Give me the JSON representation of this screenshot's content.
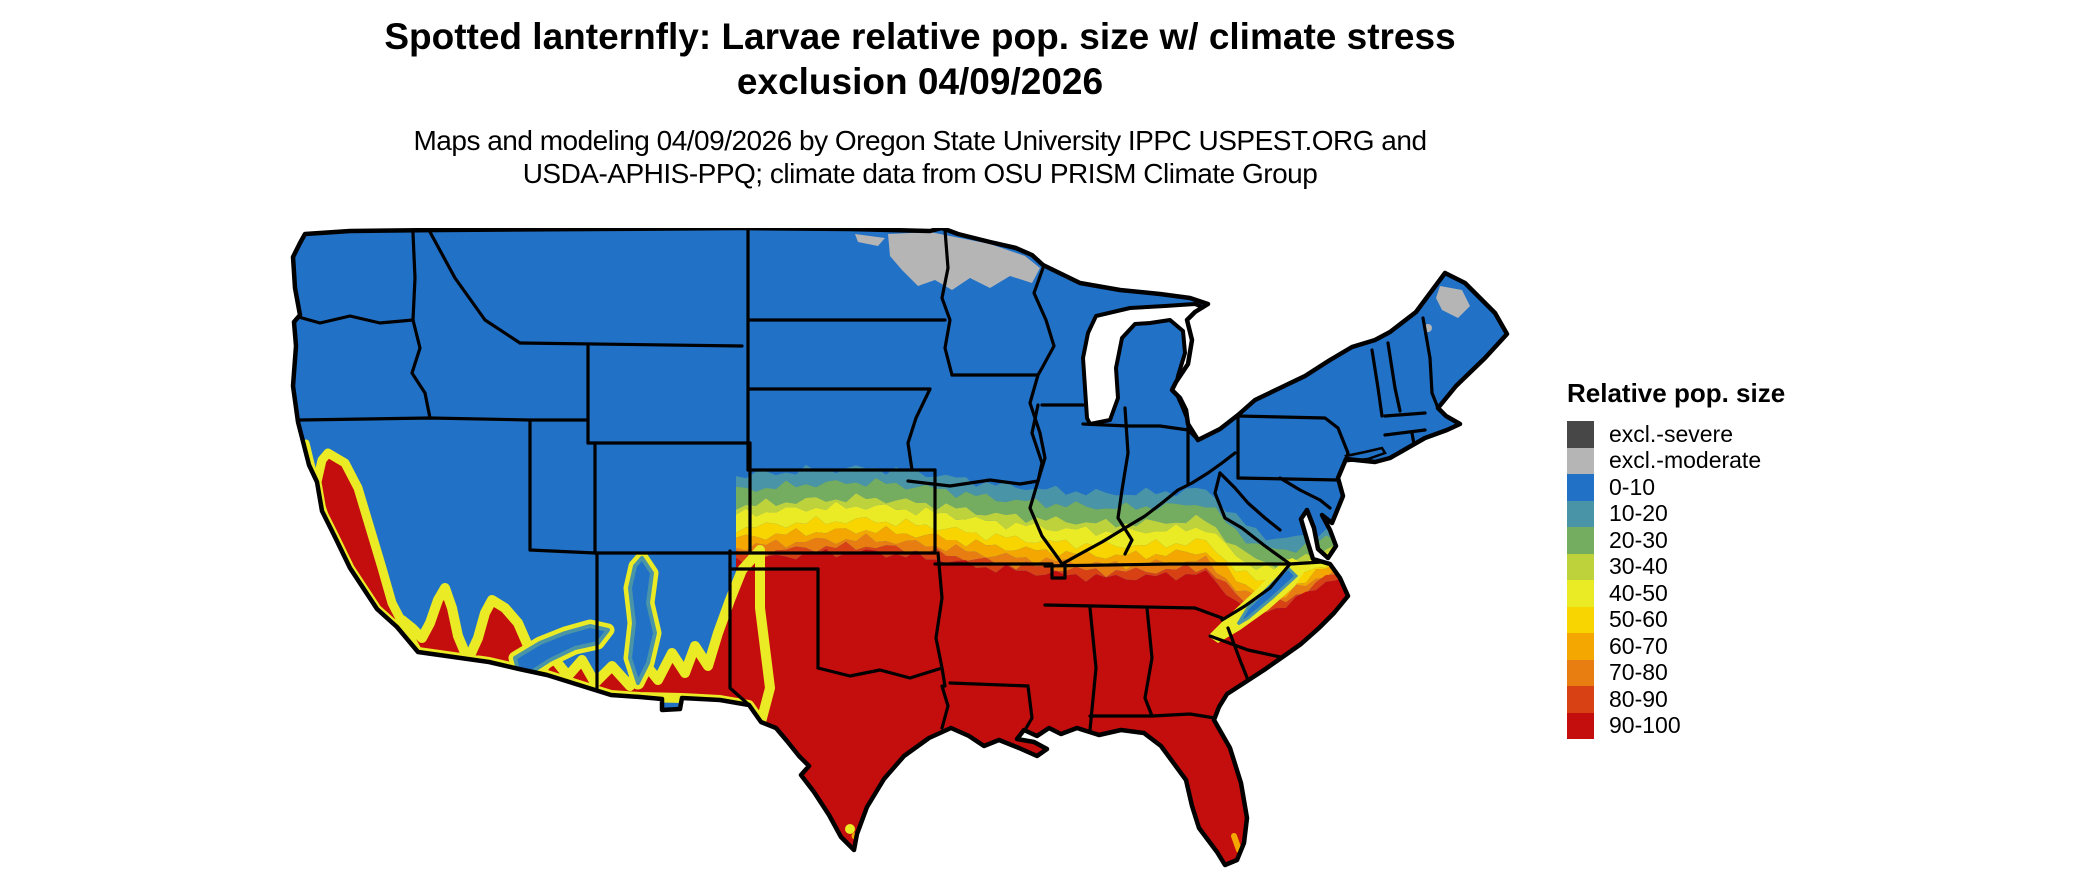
{
  "header": {
    "title_line1": "Spotted lanternfly: Larvae relative pop. size w/ climate stress",
    "title_line2": "exclusion 04/09/2026",
    "subtitle_line1": "Maps and modeling 04/09/2026 by Oregon State University IPPC USPEST.ORG and",
    "subtitle_line2": "USDA-APHIS-PPQ; climate data from OSU PRISM Climate Group"
  },
  "legend": {
    "title": "Relative pop. size",
    "items": [
      {
        "label": "excl.-severe",
        "color_key": "excl_severe"
      },
      {
        "label": "excl.-moderate",
        "color_key": "excl_moderate"
      },
      {
        "label": "0-10",
        "color_key": "c0_10"
      },
      {
        "label": "10-20",
        "color_key": "c10_20"
      },
      {
        "label": "20-30",
        "color_key": "c20_30"
      },
      {
        "label": "30-40",
        "color_key": "c30_40"
      },
      {
        "label": "40-50",
        "color_key": "c40_50"
      },
      {
        "label": "50-60",
        "color_key": "c50_60"
      },
      {
        "label": "60-70",
        "color_key": "c60_70"
      },
      {
        "label": "70-80",
        "color_key": "c70_80"
      },
      {
        "label": "80-90",
        "color_key": "c80_90"
      },
      {
        "label": "90-100",
        "color_key": "c90_100"
      }
    ]
  },
  "palette": {
    "excl_severe": "#474747",
    "excl_moderate": "#b5b5b5",
    "c0_10": "#2171c7",
    "c10_20": "#4a94a8",
    "c20_30": "#74ad60",
    "c30_40": "#bdd23b",
    "c40_50": "#eaea25",
    "c50_60": "#f8d500",
    "c60_70": "#f3a700",
    "c70_80": "#e87e12",
    "c80_90": "#d74114",
    "c90_100": "#c40d0d",
    "border": "#000000",
    "water": "#ffffff"
  },
  "map": {
    "kind": "choropleth-raster, continental United States with state borders",
    "features": [
      "Northern tier (Pacific Northwest, northern Rockies, northern plains, upper Midwest, Northeast) in 0-10 blue",
      "excl.-moderate gray zone across northern Minnesota / northeastern North Dakota and small patches in northern Maine",
      "East-west banded gradient (10-20 through 80-90) running from Kansas across Missouri, the Ohio Valley and Virginia",
      "Entire South (Texas, Oklahoma, Gulf states, Florida, Carolinas coastal plain) in 90-100 red",
      "California Central Valley, southern California and Desert Southwest in 90-100 red with yellow fringes",
      "Mountain islands of 0-10 blue: Sierra Nevada, Mogollon Rim, central New Mexico ranges",
      "Appalachian blue/yellow streak through eastern Tennessee, western North Carolina and West Virginia",
      "Great Lakes and ocean left white"
    ]
  }
}
